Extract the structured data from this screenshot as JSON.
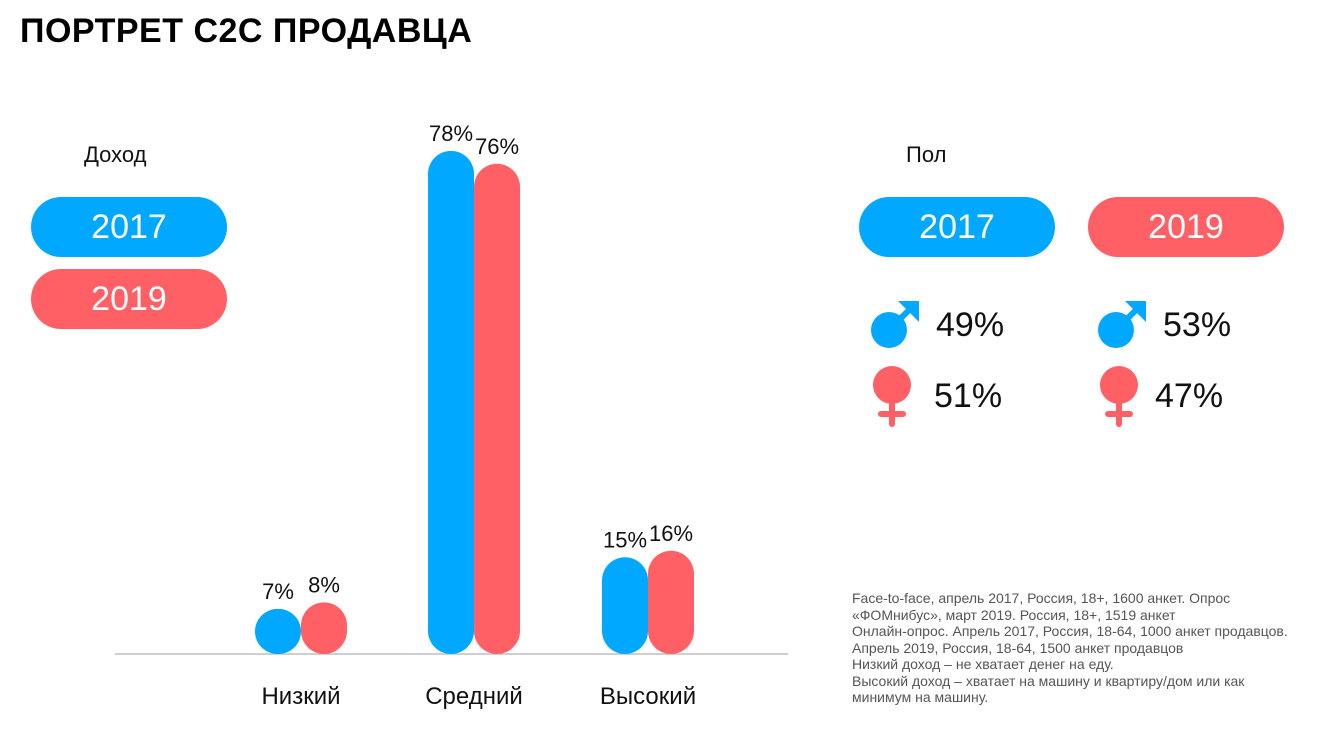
{
  "page": {
    "title": "ПОРТРЕТ C2C ПРОДАВЦА"
  },
  "colors": {
    "year_2017": "#00a8ff",
    "year_2019": "#ff6065",
    "axis": "#bfbfbf"
  },
  "income": {
    "label": "Доход",
    "legend": [
      "2017",
      "2019"
    ]
  },
  "gender": {
    "label": "Пол",
    "columns": [
      {
        "year": "2017",
        "male": "49%",
        "female": "51%"
      },
      {
        "year": "2019",
        "male": "53%",
        "female": "47%"
      }
    ],
    "icons": {
      "male": "male-icon",
      "female": "female-icon"
    }
  },
  "notes": [
    "Face-to-face, апрель 2017, Россия, 18+, 1600 анкет. Опрос",
    "«ФОМнибус», март 2019. Россия, 18+, 1519 анкет",
    "Онлайн-опрос. Апрель 2017, Россия, 18-64, 1000 анкет продавцов.",
    "Апрель 2019, Россия, 18-64, 1500 анкет продавцов",
    "Низкий доход – не хватает денег на еду.",
    "Высокий доход – хватает на машину и квартиру/дом или как",
    "минимум на машину."
  ],
  "chart_data": {
    "type": "bar",
    "categories": [
      "Низкий",
      "Средний",
      "Высокий"
    ],
    "series": [
      {
        "name": "2017",
        "values": [
          7,
          78,
          15
        ],
        "labels": [
          "7%",
          "78%",
          "15%"
        ]
      },
      {
        "name": "2019",
        "values": [
          8,
          76,
          16
        ],
        "labels": [
          "8%",
          "76%",
          "16%"
        ]
      }
    ],
    "ylim": [
      0,
      80
    ],
    "grid": false,
    "legend": "left"
  }
}
